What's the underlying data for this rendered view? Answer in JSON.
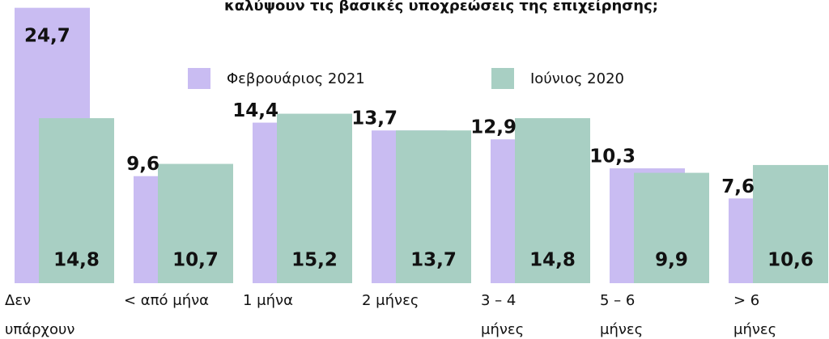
{
  "chart_data": {
    "type": "bar",
    "title": "καλύψουν τις βασικές υποχρεώσεις της επιχείρησης;",
    "categories": [
      [
        "Δεν",
        "υπάρχουν"
      ],
      [
        "< από μήνα"
      ],
      [
        "1 μήνα"
      ],
      [
        "2 μήνες"
      ],
      [
        "3 – 4",
        "μήνες"
      ],
      [
        "5 – 6",
        "μήνες"
      ],
      [
        "> 6",
        "μήνες"
      ]
    ],
    "series": [
      {
        "name": "Φεβρουάριος 2021",
        "color": "#c9bcf2",
        "values": [
          24.7,
          9.6,
          14.4,
          13.7,
          12.9,
          10.3,
          7.6
        ],
        "value_labels": [
          "24,7",
          "9,6",
          "14,4",
          "13,7",
          "12,9",
          "10,3",
          "7,6"
        ]
      },
      {
        "name": "Ιούνιος 2020",
        "color": "#a8cfc3",
        "values": [
          14.8,
          10.7,
          15.2,
          13.7,
          14.8,
          9.9,
          10.6
        ],
        "value_labels": [
          "14,8",
          "10,7",
          "15,2",
          "13,7",
          "14,8",
          "9,9",
          "10,6"
        ]
      }
    ],
    "ylim": [
      0,
      25.4
    ]
  }
}
